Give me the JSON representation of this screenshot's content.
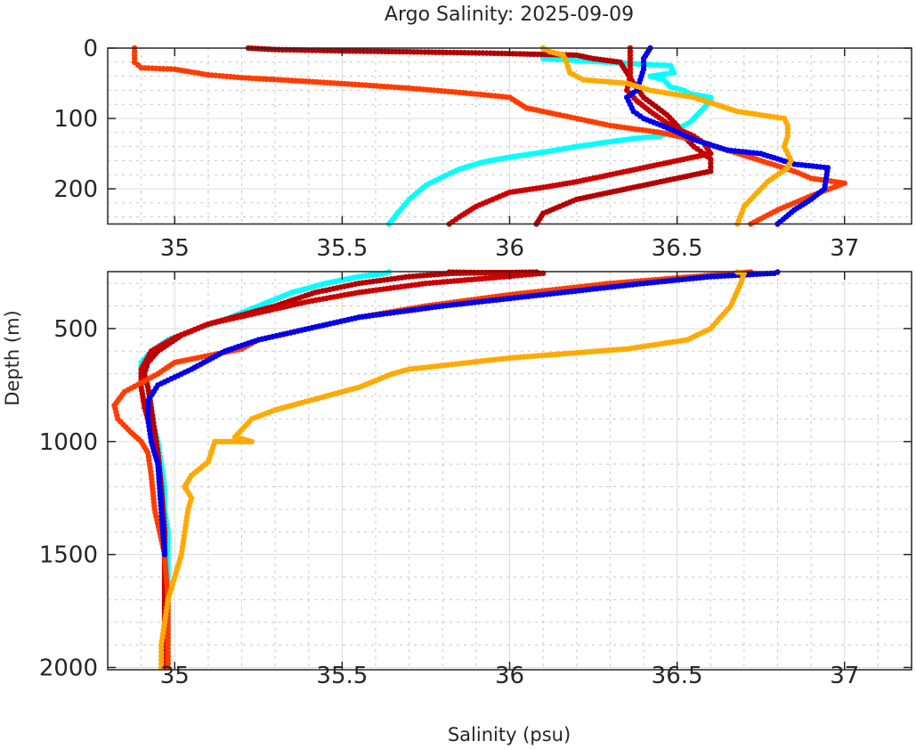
{
  "chart_data": {
    "type": "scatter",
    "title": "Argo Salinity: 2025-09-09",
    "xlabel": "Salinity (psu)",
    "ylabel": "Depth (m)",
    "xlim": [
      34.8,
      37.2
    ],
    "x_ticks": [
      35,
      35.5,
      36,
      36.5,
      37
    ],
    "x_tick_labels": [
      "35",
      "35.5",
      "36",
      "36.5",
      "37"
    ],
    "grid": true,
    "panels": [
      {
        "name": "upper",
        "ylim": [
          0,
          250
        ],
        "y_ticks": [
          0,
          100,
          200
        ],
        "y_tick_labels": [
          "0",
          "100",
          "200"
        ],
        "y_reversed": true
      },
      {
        "name": "lower",
        "ylim": [
          248,
          2010
        ],
        "y_ticks": [
          500,
          1000,
          1500,
          2000
        ],
        "y_tick_labels": [
          "500",
          "1000",
          "1500",
          "2000"
        ],
        "y_reversed": true
      }
    ],
    "series": [
      {
        "name": "profile-cyan",
        "color": "#00ffff",
        "points": [
          [
            36.1,
            0
          ],
          [
            36.11,
            10
          ],
          [
            36.1,
            15
          ],
          [
            36.48,
            25
          ],
          [
            36.49,
            35
          ],
          [
            36.42,
            40
          ],
          [
            36.46,
            45
          ],
          [
            36.48,
            55
          ],
          [
            36.52,
            60
          ],
          [
            36.54,
            65
          ],
          [
            36.6,
            70
          ],
          [
            36.6,
            75
          ],
          [
            36.58,
            85
          ],
          [
            36.56,
            95
          ],
          [
            36.54,
            105
          ],
          [
            36.5,
            115
          ],
          [
            36.45,
            125
          ],
          [
            36.38,
            128
          ],
          [
            36.3,
            133
          ],
          [
            36.2,
            140
          ],
          [
            36.1,
            148
          ],
          [
            36.0,
            155
          ],
          [
            35.92,
            162
          ],
          [
            35.85,
            172
          ],
          [
            35.8,
            183
          ],
          [
            35.75,
            195
          ],
          [
            35.7,
            215
          ],
          [
            35.67,
            232
          ],
          [
            35.64,
            250
          ],
          [
            35.63,
            255
          ],
          [
            35.55,
            270
          ],
          [
            35.45,
            300
          ],
          [
            35.35,
            340
          ],
          [
            35.25,
            400
          ],
          [
            35.15,
            460
          ],
          [
            35.05,
            510
          ],
          [
            34.98,
            550
          ],
          [
            34.93,
            600
          ],
          [
            34.9,
            650
          ],
          [
            34.9,
            700
          ],
          [
            34.9,
            760
          ],
          [
            34.91,
            820
          ],
          [
            34.93,
            900
          ],
          [
            34.95,
            1000
          ],
          [
            34.96,
            1100
          ],
          [
            34.97,
            1200
          ],
          [
            34.97,
            1300
          ],
          [
            34.98,
            1400
          ],
          [
            34.98,
            1500
          ],
          [
            34.98,
            1600
          ],
          [
            34.98,
            1700
          ],
          [
            34.98,
            1800
          ],
          [
            34.98,
            1900
          ],
          [
            34.98,
            2000
          ]
        ]
      },
      {
        "name": "profile-darkred-a",
        "color": "#b30000",
        "points": [
          [
            35.22,
            0
          ],
          [
            35.3,
            2
          ],
          [
            35.4,
            3
          ],
          [
            35.5,
            4
          ],
          [
            35.66,
            5
          ],
          [
            35.92,
            7
          ],
          [
            36.01,
            8
          ],
          [
            36.2,
            10
          ],
          [
            36.25,
            15
          ],
          [
            36.33,
            20
          ],
          [
            36.37,
            50
          ],
          [
            36.4,
            70
          ],
          [
            36.47,
            95
          ],
          [
            36.5,
            110
          ],
          [
            36.52,
            125
          ],
          [
            36.55,
            140
          ],
          [
            36.58,
            150
          ],
          [
            36.6,
            158
          ],
          [
            36.6,
            175
          ],
          [
            36.5,
            185
          ],
          [
            36.4,
            195
          ],
          [
            36.3,
            205
          ],
          [
            36.2,
            215
          ],
          [
            36.1,
            235
          ],
          [
            36.08,
            250
          ],
          [
            35.83,
            255
          ],
          [
            35.7,
            270
          ],
          [
            35.55,
            300
          ],
          [
            35.42,
            340
          ],
          [
            35.3,
            400
          ],
          [
            35.2,
            440
          ],
          [
            35.1,
            480
          ],
          [
            35.02,
            530
          ],
          [
            34.95,
            600
          ],
          [
            34.92,
            650
          ],
          [
            34.91,
            700
          ],
          [
            34.92,
            760
          ],
          [
            34.93,
            850
          ],
          [
            34.94,
            950
          ],
          [
            34.95,
            1050
          ],
          [
            34.96,
            1200
          ],
          [
            34.97,
            1400
          ],
          [
            34.97,
            1600
          ],
          [
            34.97,
            1800
          ],
          [
            34.97,
            2000
          ]
        ]
      },
      {
        "name": "profile-red-b",
        "color": "#cc0000",
        "points": [
          [
            36.36,
            0
          ],
          [
            36.36,
            20
          ],
          [
            36.36,
            40
          ],
          [
            36.35,
            60
          ],
          [
            36.38,
            75
          ],
          [
            36.42,
            90
          ],
          [
            36.48,
            110
          ],
          [
            36.55,
            125
          ],
          [
            36.58,
            135
          ],
          [
            36.6,
            150
          ],
          [
            36.5,
            160
          ],
          [
            36.4,
            170
          ],
          [
            36.3,
            180
          ],
          [
            36.2,
            190
          ],
          [
            36.1,
            198
          ],
          [
            36.0,
            205
          ],
          [
            35.95,
            215
          ],
          [
            35.9,
            225
          ],
          [
            35.85,
            240
          ],
          [
            35.82,
            250
          ],
          [
            36.1,
            255
          ],
          [
            35.95,
            275
          ],
          [
            35.75,
            300
          ],
          [
            35.55,
            340
          ],
          [
            35.4,
            380
          ],
          [
            35.25,
            430
          ],
          [
            35.1,
            480
          ],
          [
            35.0,
            540
          ],
          [
            34.93,
            600
          ],
          [
            34.9,
            680
          ],
          [
            34.9,
            760
          ],
          [
            34.91,
            850
          ],
          [
            34.93,
            950
          ],
          [
            34.95,
            1100
          ],
          [
            34.96,
            1300
          ],
          [
            34.97,
            1500
          ],
          [
            34.97,
            1700
          ],
          [
            34.97,
            1900
          ],
          [
            34.97,
            2000
          ]
        ]
      },
      {
        "name": "profile-orangered",
        "color": "#ff3c00",
        "points": [
          [
            34.88,
            0
          ],
          [
            34.88,
            20
          ],
          [
            34.9,
            28
          ],
          [
            35.0,
            30
          ],
          [
            35.1,
            38
          ],
          [
            35.2,
            42
          ],
          [
            35.35,
            46
          ],
          [
            35.55,
            52
          ],
          [
            35.7,
            57
          ],
          [
            35.85,
            63
          ],
          [
            36.0,
            70
          ],
          [
            36.05,
            85
          ],
          [
            36.15,
            95
          ],
          [
            36.3,
            110
          ],
          [
            36.45,
            120
          ],
          [
            36.55,
            130
          ],
          [
            36.65,
            145
          ],
          [
            36.75,
            160
          ],
          [
            36.85,
            175
          ],
          [
            36.9,
            185
          ],
          [
            37.0,
            192
          ],
          [
            36.9,
            210
          ],
          [
            36.8,
            230
          ],
          [
            36.72,
            250
          ],
          [
            36.68,
            255
          ],
          [
            36.55,
            270
          ],
          [
            36.3,
            300
          ],
          [
            36.0,
            350
          ],
          [
            35.75,
            400
          ],
          [
            35.55,
            450
          ],
          [
            35.4,
            500
          ],
          [
            35.25,
            550
          ],
          [
            35.2,
            590
          ],
          [
            35.1,
            620
          ],
          [
            35.0,
            650
          ],
          [
            34.95,
            700
          ],
          [
            34.9,
            740
          ],
          [
            34.85,
            780
          ],
          [
            34.82,
            840
          ],
          [
            34.83,
            900
          ],
          [
            34.87,
            960
          ],
          [
            34.9,
            1000
          ],
          [
            34.92,
            1050
          ],
          [
            34.93,
            1150
          ],
          [
            34.94,
            1300
          ],
          [
            34.97,
            1500
          ],
          [
            34.98,
            1700
          ],
          [
            34.98,
            1900
          ],
          [
            34.98,
            2000
          ]
        ]
      },
      {
        "name": "profile-blue",
        "color": "#0000ee",
        "points": [
          [
            36.42,
            0
          ],
          [
            36.4,
            15
          ],
          [
            36.4,
            30
          ],
          [
            36.38,
            60
          ],
          [
            36.35,
            70
          ],
          [
            36.37,
            90
          ],
          [
            36.4,
            100
          ],
          [
            36.48,
            115
          ],
          [
            36.55,
            130
          ],
          [
            36.65,
            145
          ],
          [
            36.75,
            150
          ],
          [
            36.85,
            165
          ],
          [
            36.95,
            170
          ],
          [
            36.94,
            200
          ],
          [
            36.9,
            215
          ],
          [
            36.85,
            230
          ],
          [
            36.8,
            250
          ],
          [
            36.79,
            255
          ],
          [
            36.6,
            270
          ],
          [
            36.4,
            300
          ],
          [
            36.1,
            350
          ],
          [
            35.8,
            400
          ],
          [
            35.55,
            450
          ],
          [
            35.4,
            500
          ],
          [
            35.25,
            550
          ],
          [
            35.15,
            600
          ],
          [
            35.05,
            680
          ],
          [
            34.95,
            750
          ],
          [
            34.92,
            820
          ],
          [
            34.92,
            900
          ],
          [
            34.93,
            1000
          ],
          [
            34.95,
            1100
          ],
          [
            34.96,
            1300
          ],
          [
            34.97,
            1500
          ]
        ]
      },
      {
        "name": "profile-orange",
        "color": "#ffaa00",
        "points": [
          [
            36.1,
            0
          ],
          [
            36.12,
            5
          ],
          [
            36.16,
            10
          ],
          [
            36.17,
            20
          ],
          [
            36.18,
            35
          ],
          [
            36.22,
            45
          ],
          [
            36.35,
            50
          ],
          [
            36.42,
            60
          ],
          [
            36.55,
            70
          ],
          [
            36.68,
            90
          ],
          [
            36.82,
            100
          ],
          [
            36.83,
            110
          ],
          [
            36.83,
            125
          ],
          [
            36.82,
            140
          ],
          [
            36.84,
            160
          ],
          [
            36.83,
            170
          ],
          [
            36.77,
            190
          ],
          [
            36.73,
            210
          ],
          [
            36.7,
            225
          ],
          [
            36.68,
            250
          ],
          [
            36.7,
            255
          ],
          [
            36.69,
            300
          ],
          [
            36.66,
            400
          ],
          [
            36.6,
            500
          ],
          [
            36.53,
            550
          ],
          [
            36.35,
            590
          ],
          [
            36.0,
            630
          ],
          [
            35.7,
            680
          ],
          [
            35.65,
            700
          ],
          [
            35.55,
            760
          ],
          [
            35.45,
            800
          ],
          [
            35.3,
            860
          ],
          [
            35.23,
            900
          ],
          [
            35.18,
            980
          ],
          [
            35.23,
            1000
          ],
          [
            35.12,
            1000
          ],
          [
            35.1,
            1090
          ],
          [
            35.05,
            1150
          ],
          [
            35.03,
            1200
          ],
          [
            35.05,
            1250
          ],
          [
            35.04,
            1300
          ],
          [
            35.03,
            1400
          ],
          [
            35.02,
            1500
          ],
          [
            35.0,
            1600
          ],
          [
            34.98,
            1700
          ],
          [
            34.97,
            1800
          ],
          [
            34.96,
            1900
          ],
          [
            34.96,
            2000
          ]
        ]
      }
    ]
  }
}
